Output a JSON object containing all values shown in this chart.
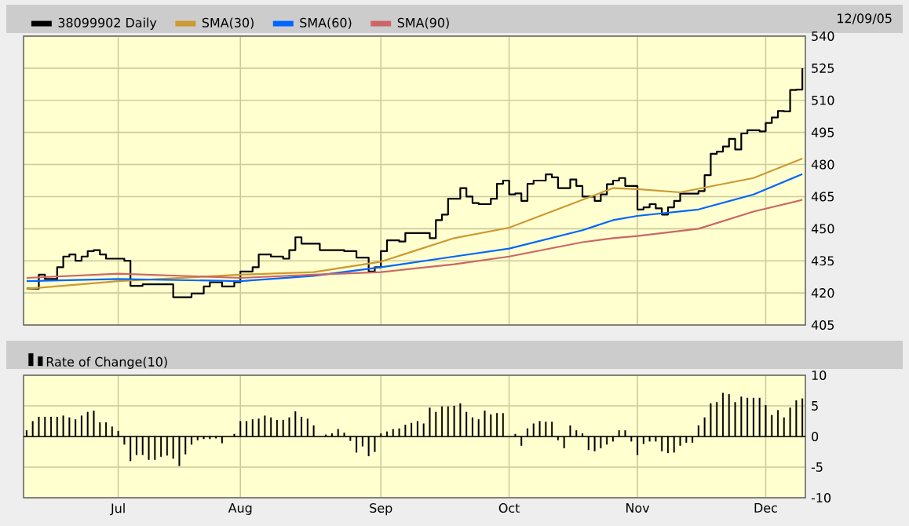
{
  "chart_data": [
    {
      "type": "line",
      "legend": "top",
      "grid": true,
      "tick_labels": "y",
      "annotations": [
        "12/09/05"
      ],
      "ylim": [
        405,
        540
      ],
      "yticks": [
        405,
        420,
        435,
        450,
        465,
        480,
        495,
        510,
        525,
        540
      ],
      "categories": [
        null,
        null,
        null,
        null,
        null,
        null,
        null,
        null,
        null,
        null,
        null,
        null,
        null,
        null,
        null,
        null,
        null,
        null,
        null,
        null,
        null,
        null,
        null,
        null,
        null,
        null,
        null,
        null,
        null,
        null,
        null,
        null,
        null,
        null,
        null,
        null,
        null,
        null,
        null,
        null,
        null,
        null,
        null,
        null,
        null,
        null,
        null,
        null,
        null,
        null,
        null,
        null,
        null,
        null,
        null,
        null,
        null,
        null,
        null,
        null,
        null,
        null,
        null,
        null,
        null,
        null,
        null,
        null,
        null,
        null,
        null,
        null,
        null,
        null,
        null,
        null,
        null,
        null,
        null,
        null,
        null,
        null,
        null,
        null,
        null,
        null,
        null,
        null,
        null,
        null,
        null,
        null,
        null,
        null,
        null,
        null,
        null,
        null,
        null,
        null,
        null,
        null,
        null,
        null,
        null,
        null,
        null,
        null,
        null,
        null,
        null,
        null,
        null,
        null,
        null,
        null,
        null,
        null,
        null,
        null,
        null,
        null,
        null,
        null,
        null,
        null,
        null,
        null
      ],
      "series": [
        {
          "name": "38099902 Daily",
          "type": "step",
          "color": "#000000",
          "values": [
            422,
            422,
            428.5,
            426.5,
            426.5,
            432,
            437,
            438,
            435,
            437,
            439.5,
            440,
            438,
            436,
            436,
            436,
            435,
            423.3,
            423.3,
            424,
            424,
            424,
            424,
            424,
            418,
            418,
            418,
            419.7,
            419.7,
            423,
            425,
            425,
            423,
            423,
            425,
            430,
            430,
            432,
            438,
            438,
            437,
            437,
            436,
            440,
            446,
            443,
            443,
            443,
            440,
            440,
            440,
            440,
            439.5,
            439.5,
            436.5,
            436.5,
            430,
            432,
            439.5,
            444.6,
            444.6,
            444,
            448,
            448,
            448,
            448,
            445.6,
            454,
            456.6,
            464,
            464,
            469,
            465,
            462,
            461.5,
            461.5,
            464,
            471,
            472.5,
            466,
            466.5,
            463,
            471,
            472.5,
            472.5,
            475.4,
            474,
            469,
            469,
            473,
            470,
            465,
            465,
            463,
            466,
            470.8,
            472.5,
            473.7,
            470,
            470,
            459,
            460,
            461.5,
            459.5,
            456.6,
            460,
            463,
            466.4,
            466.4,
            466.4,
            467.6,
            475,
            485,
            486,
            488.4,
            492,
            487,
            494.5,
            496,
            496,
            495.5,
            499.4,
            502,
            505,
            504.8,
            514.8,
            515,
            525
          ]
        },
        {
          "name": "SMA(30)",
          "type": "line",
          "color": "#cc9933",
          "values": [
            421.9,
            null,
            null,
            null,
            null,
            null,
            null,
            null,
            null,
            null,
            null,
            null,
            null,
            null,
            null,
            425.5,
            null,
            null,
            null,
            null,
            null,
            null,
            null,
            null,
            null,
            null,
            null,
            null,
            null,
            null,
            null,
            null,
            null,
            null,
            null,
            428.5,
            null,
            null,
            null,
            null,
            null,
            null,
            null,
            null,
            null,
            null,
            null,
            429.7,
            null,
            null,
            null,
            null,
            null,
            null,
            null,
            null,
            null,
            null,
            434.6,
            null,
            null,
            null,
            null,
            null,
            null,
            null,
            null,
            null,
            null,
            null,
            445.6,
            null,
            null,
            null,
            null,
            null,
            null,
            null,
            null,
            450.5,
            null,
            null,
            null,
            null,
            null,
            null,
            null,
            null,
            null,
            null,
            null,
            463.5,
            null,
            null,
            null,
            null,
            469,
            null,
            null,
            null,
            468.5,
            null,
            null,
            null,
            null,
            null,
            null,
            467,
            null,
            null,
            null,
            null,
            null,
            null,
            null,
            null,
            null,
            null,
            null,
            473.7,
            null,
            null,
            null,
            null,
            null,
            null,
            null,
            482.8
          ]
        },
        {
          "name": "SMA(60)",
          "type": "line",
          "color": "#0066ff",
          "values": [
            425.5,
            null,
            null,
            null,
            null,
            null,
            null,
            null,
            null,
            null,
            null,
            null,
            null,
            null,
            null,
            426.5,
            null,
            null,
            null,
            null,
            null,
            null,
            null,
            null,
            null,
            null,
            null,
            null,
            null,
            null,
            null,
            null,
            null,
            null,
            null,
            425.5,
            null,
            null,
            null,
            null,
            null,
            null,
            null,
            null,
            null,
            null,
            null,
            428,
            null,
            null,
            null,
            null,
            null,
            null,
            null,
            null,
            null,
            null,
            432,
            null,
            null,
            null,
            null,
            null,
            null,
            null,
            null,
            null,
            null,
            null,
            437,
            null,
            null,
            null,
            null,
            null,
            null,
            null,
            null,
            440.7,
            null,
            null,
            null,
            null,
            null,
            null,
            null,
            null,
            null,
            null,
            null,
            449.3,
            null,
            null,
            null,
            null,
            454,
            null,
            null,
            null,
            456,
            null,
            null,
            null,
            null,
            null,
            null,
            null,
            null,
            null,
            459,
            null,
            null,
            null,
            null,
            null,
            null,
            null,
            null,
            466,
            null,
            null,
            null,
            null,
            null,
            null,
            null,
            475.5
          ]
        },
        {
          "name": "SMA(90)",
          "type": "line",
          "color": "#cc6666",
          "values": [
            427,
            null,
            null,
            null,
            null,
            null,
            null,
            null,
            null,
            null,
            null,
            null,
            null,
            null,
            null,
            429,
            null,
            null,
            null,
            null,
            null,
            null,
            null,
            null,
            null,
            null,
            null,
            null,
            null,
            null,
            null,
            null,
            null,
            null,
            null,
            427,
            null,
            null,
            null,
            null,
            null,
            null,
            null,
            null,
            null,
            null,
            null,
            428.5,
            null,
            null,
            null,
            null,
            null,
            null,
            null,
            null,
            null,
            null,
            429.7,
            null,
            null,
            null,
            null,
            null,
            null,
            null,
            null,
            null,
            null,
            null,
            433.4,
            null,
            null,
            null,
            null,
            null,
            null,
            null,
            null,
            437,
            null,
            null,
            null,
            null,
            null,
            null,
            null,
            null,
            null,
            null,
            null,
            443.7,
            null,
            null,
            null,
            null,
            445.6,
            null,
            null,
            null,
            446.6,
            null,
            null,
            null,
            null,
            null,
            null,
            null,
            null,
            null,
            450,
            null,
            null,
            null,
            null,
            null,
            null,
            null,
            null,
            458,
            null,
            null,
            null,
            null,
            null,
            null,
            null,
            463.5
          ]
        }
      ]
    },
    {
      "type": "bar",
      "legend": "top",
      "grid": true,
      "ylim": [
        -10,
        10
      ],
      "yticks": [
        -10,
        -5,
        0,
        5,
        10
      ],
      "categories": [
        null,
        null,
        null,
        null,
        null,
        null,
        null,
        null,
        null,
        null,
        null,
        null,
        null,
        null,
        null,
        "Jul",
        null,
        null,
        null,
        null,
        null,
        null,
        null,
        null,
        null,
        null,
        null,
        null,
        null,
        null,
        null,
        null,
        null,
        null,
        null,
        "Aug",
        null,
        null,
        null,
        null,
        null,
        null,
        null,
        null,
        null,
        null,
        null,
        null,
        null,
        null,
        null,
        null,
        null,
        null,
        null,
        null,
        null,
        null,
        "Sep",
        null,
        null,
        null,
        null,
        null,
        null,
        null,
        null,
        null,
        null,
        null,
        null,
        null,
        null,
        null,
        null,
        null,
        null,
        null,
        null,
        "Oct",
        null,
        null,
        null,
        null,
        null,
        null,
        null,
        null,
        null,
        null,
        null,
        null,
        null,
        null,
        null,
        null,
        null,
        null,
        null,
        null,
        "Nov",
        null,
        null,
        null,
        null,
        null,
        null,
        null,
        null,
        null,
        null,
        null,
        null,
        null,
        null,
        null,
        null,
        null,
        null,
        null,
        null,
        "Dec",
        null,
        null,
        null,
        null,
        null,
        null
      ],
      "series": [
        {
          "name": "Rate of Change(10)",
          "color": "#000000",
          "values": [
            1.0,
            2.5,
            3.2,
            3.2,
            3.2,
            3.2,
            3.4,
            3.1,
            2.8,
            3.4,
            4.0,
            4.2,
            2.3,
            2.3,
            1.6,
            0.9,
            -1.3,
            -4.0,
            -3.0,
            -3.0,
            -3.8,
            -3.8,
            -3.3,
            -3.1,
            -3.6,
            -4.8,
            -2.9,
            -1.3,
            -0.6,
            -0.4,
            -0.4,
            -0.3,
            -1.1,
            null,
            0.4,
            2.5,
            2.5,
            2.8,
            2.9,
            3.4,
            3.1,
            2.7,
            2.7,
            3.1,
            4.1,
            3.2,
            2.9,
            1.8,
            null,
            0.3,
            0.5,
            1.2,
            0.6,
            -0.7,
            -2.6,
            -1.6,
            -3.2,
            -2.5,
            0.5,
            0.8,
            1.2,
            1.3,
            1.9,
            2.2,
            2.5,
            2.1,
            4.7,
            4.0,
            4.9,
            4.9,
            5.0,
            5.4,
            4.0,
            3.1,
            2.8,
            4.2,
            3.6,
            3.8,
            3.8,
            null,
            0.4,
            -1.5,
            1.3,
            2.1,
            2.5,
            2.4,
            2.4,
            -0.6,
            -1.9,
            1.8,
            1.0,
            0.5,
            -2.2,
            -2.4,
            -1.9,
            -1.3,
            -0.8,
            1.0,
            1.0,
            -0.8,
            -3.0,
            -1.2,
            -0.8,
            -0.8,
            -2.4,
            -2.7,
            -2.6,
            -1.5,
            -1.0,
            -1.0,
            1.8,
            3.1,
            5.4,
            5.6,
            7.1,
            6.9,
            5.6,
            6.5,
            6.3,
            6.3,
            6.3,
            5.1,
            3.5,
            4.3,
            3.1,
            4.7,
            5.9,
            6.2
          ]
        }
      ]
    }
  ]
}
